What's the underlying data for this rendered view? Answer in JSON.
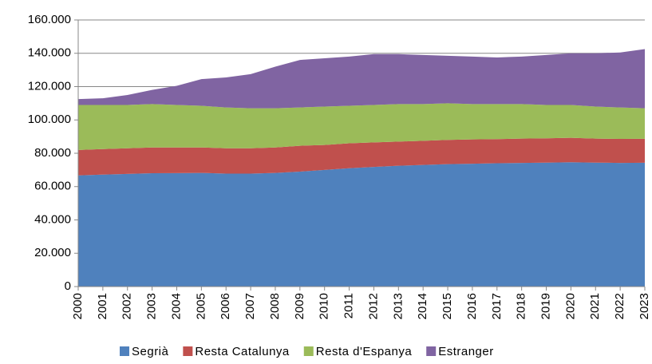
{
  "chart_data": {
    "type": "stacked_area",
    "categories": [
      "2000",
      "2001",
      "2002",
      "2003",
      "2004",
      "2005",
      "2006",
      "2007",
      "2008",
      "2009",
      "2010",
      "2011",
      "2012",
      "2013",
      "2014",
      "2015",
      "2016",
      "2017",
      "2018",
      "2019",
      "2020",
      "2021",
      "2022",
      "2023"
    ],
    "series": [
      {
        "name": "Segrià",
        "color": "#4f81bd",
        "values": [
          66700,
          67200,
          67600,
          68000,
          68100,
          68200,
          67800,
          67800,
          68200,
          69000,
          70000,
          71000,
          71800,
          72500,
          73000,
          73500,
          73700,
          74000,
          74200,
          74400,
          74600,
          74400,
          74200,
          74300
        ]
      },
      {
        "name": "Resta Catalunya",
        "color": "#c0504d",
        "values": [
          15300,
          15300,
          15400,
          15500,
          15400,
          15300,
          15200,
          15200,
          15300,
          15500,
          15000,
          15000,
          14700,
          14500,
          14500,
          14500,
          14600,
          14500,
          14600,
          14600,
          14700,
          14400,
          14400,
          14400
        ]
      },
      {
        "name": "Resta d'Espanya",
        "color": "#9bbb59",
        "values": [
          27000,
          26500,
          26000,
          26000,
          25500,
          25000,
          24500,
          24000,
          23500,
          23000,
          23000,
          22500,
          22500,
          22500,
          22000,
          22000,
          21200,
          21000,
          20700,
          20000,
          19700,
          19200,
          18900,
          18300
        ]
      },
      {
        "name": "Estranger",
        "color": "#8064a2",
        "values": [
          3500,
          4000,
          6000,
          8500,
          11500,
          16000,
          18000,
          20500,
          25000,
          28500,
          29000,
          29500,
          30500,
          30000,
          29500,
          28500,
          28500,
          28000,
          28500,
          30000,
          31000,
          32000,
          33000,
          35500
        ]
      }
    ],
    "ylim": [
      0,
      160000
    ],
    "yticks": [
      0,
      {
        "value": 20000,
        "label": "20.000"
      },
      {
        "value": 40000,
        "label": "40.000"
      },
      {
        "value": 60000,
        "label": "60.000"
      },
      {
        "value": 80000,
        "label": "80.000"
      },
      {
        "value": 100000,
        "label": "100.000"
      },
      {
        "value": 120000,
        "label": "120.000"
      },
      {
        "value": 140000,
        "label": "140.000"
      },
      {
        "value": 160000,
        "label": "160.000"
      }
    ],
    "grid": true,
    "legend": "bottom"
  }
}
